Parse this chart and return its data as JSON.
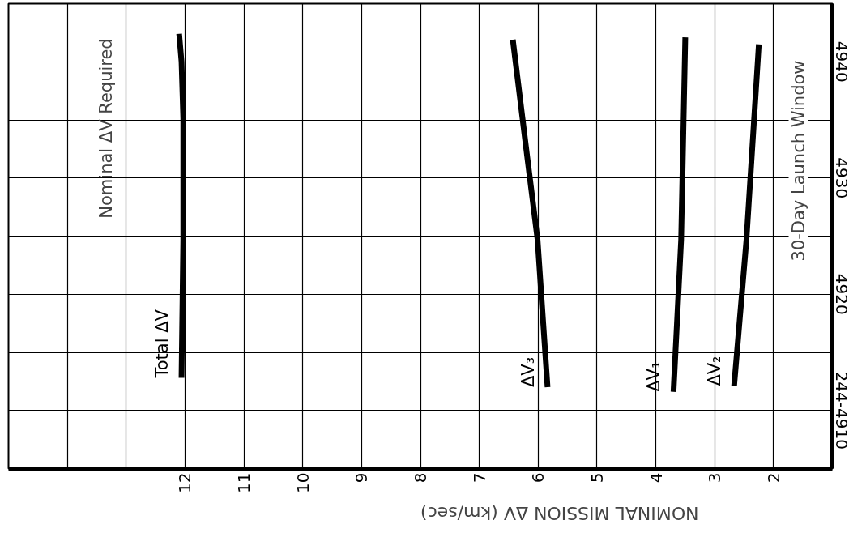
{
  "chart_data": {
    "type": "line",
    "title": "Nominal ΔV Required",
    "xlabel": "NOMINAL MISSION ΔV (km/sec)",
    "annotations": [
      "30-Day Launch Window"
    ],
    "series": [
      {
        "name": "Total ΔV",
        "color": "#000000",
        "x": [
          12.06,
          12.03,
          12.03,
          12.06,
          12.1
        ],
        "values": [
          4912.8,
          4924.7,
          4935.1,
          4940,
          4942.4
        ]
      },
      {
        "name": "ΔV₃",
        "color": "#000000",
        "x": [
          5.84,
          6.01,
          6.18,
          6.43
        ],
        "values": [
          4912,
          4924.7,
          4931.6,
          4941.9
        ]
      },
      {
        "name": "ΔV₁",
        "color": "#000000",
        "x": [
          3.7,
          3.57,
          3.5
        ],
        "values": [
          4911.6,
          4924.7,
          4942.1
        ]
      },
      {
        "name": "ΔV₂",
        "color": "#000000",
        "x": [
          2.67,
          2.46,
          2.25
        ],
        "values": [
          4912.1,
          4924.7,
          4941.5
        ]
      }
    ],
    "xlim": [
      15,
      1
    ],
    "ylim": [
      4905,
      4945
    ],
    "xticks": [
      {
        "value": 14,
        "label": null
      },
      {
        "value": 13,
        "label": null
      },
      12,
      11,
      10,
      9,
      8,
      7,
      6,
      5,
      4,
      3,
      2
    ],
    "yticks": [
      {
        "value": 4910,
        "label": "244-4910"
      },
      {
        "value": 4915,
        "label": null
      },
      4920,
      {
        "value": 4925,
        "label": null
      },
      4930,
      {
        "value": 4935,
        "label": null
      },
      4940
    ],
    "grid": true,
    "marker": "none",
    "line_style": "solid"
  }
}
